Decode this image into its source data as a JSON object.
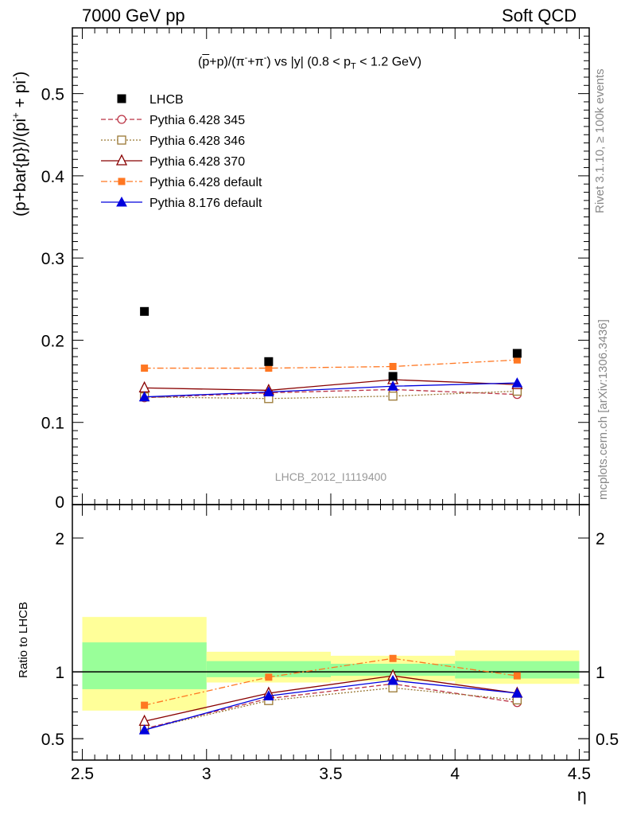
{
  "header": {
    "left": "7000 GeV pp",
    "right": "Soft QCD"
  },
  "side_labels": {
    "rivet": "Rivet 3.1.10, ≥ 100k events",
    "source": "mcplots.cern.ch [arXiv:1306.3436]"
  },
  "chart_data": {
    "type": "line",
    "title_parts": {
      "open": "(",
      "pbar": "p",
      "mid": "+p)/(π",
      "sup1": "-",
      "mid2": "+π",
      "sup2": "-",
      "mid3": ") vs |y| (0.8 < p",
      "sub": "T",
      "end": " < 1.2 GeV)"
    },
    "ylabel_parts": {
      "a": "(p+bar{p})/(pi",
      "sup1": "+",
      "b": " + pi",
      "sup2": "-",
      "c": ")"
    },
    "ratio_ylabel": "Ratio to LHCB",
    "xlabel": "η",
    "watermark": "LHCB_2012_I1119400",
    "x": [
      2.75,
      3.25,
      3.75,
      4.25
    ],
    "xlim": [
      2.46,
      4.54
    ],
    "ylim_main": [
      0,
      0.58
    ],
    "ylim_ratio": [
      0.34,
      2.25
    ],
    "x_ticks": [
      "2.5",
      "3",
      "3.5",
      "4",
      "4.5"
    ],
    "y_ticks_main": [
      "0",
      "0.1",
      "0.2",
      "0.3",
      "0.4",
      "0.5"
    ],
    "y_ticks_ratio": [
      "0.5",
      "1",
      "2"
    ],
    "bins": [
      [
        2.5,
        3.0
      ],
      [
        3.0,
        3.5
      ],
      [
        3.5,
        4.0
      ],
      [
        4.0,
        4.5
      ]
    ],
    "data_series": {
      "name": "LHCB",
      "values": [
        0.235,
        0.174,
        0.156,
        0.184
      ],
      "color": "#000000"
    },
    "ratio_bands": {
      "inner": [
        [
          0.87,
          1.22
        ],
        [
          0.96,
          1.08
        ],
        [
          0.97,
          1.06
        ],
        [
          0.95,
          1.08
        ]
      ],
      "outer": [
        [
          0.71,
          1.41
        ],
        [
          0.92,
          1.15
        ],
        [
          0.93,
          1.12
        ],
        [
          0.91,
          1.16
        ]
      ],
      "inner_color": "#99ff99",
      "outer_color": "#ffff99"
    },
    "series": [
      {
        "name": "Pythia 6.428 345",
        "values": [
          0.13,
          0.136,
          0.14,
          0.134
        ],
        "ratio": [
          0.575,
          0.8,
          0.91,
          0.77
        ],
        "color": "#bb3344",
        "marker": "circle-open",
        "dash": "6,3"
      },
      {
        "name": "Pythia 6.428 346",
        "values": [
          0.131,
          0.129,
          0.132,
          0.138
        ],
        "ratio": [
          0.57,
          0.785,
          0.88,
          0.79
        ],
        "color": "#997733",
        "marker": "square-open",
        "dash": "2,2"
      },
      {
        "name": "Pythia 6.428 370",
        "values": [
          0.142,
          0.139,
          0.152,
          0.146
        ],
        "ratio": [
          0.63,
          0.84,
          0.97,
          0.84
        ],
        "color": "#880000",
        "marker": "triangle-open",
        "dash": ""
      },
      {
        "name": "Pythia 6.428 default",
        "values": [
          0.166,
          0.166,
          0.168,
          0.176
        ],
        "ratio": [
          0.75,
          0.96,
          1.1,
          0.97
        ],
        "color": "#ff7722",
        "marker": "square-filled",
        "dash": "8,3,2,3"
      },
      {
        "name": "Pythia 8.176 default",
        "values": [
          0.131,
          0.137,
          0.144,
          0.148
        ],
        "ratio": [
          0.565,
          0.82,
          0.935,
          0.84
        ],
        "color": "#0000dd",
        "marker": "triangle-filled",
        "dash": ""
      }
    ]
  }
}
